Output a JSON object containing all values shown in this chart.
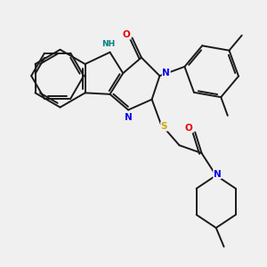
{
  "background_color": "#f0f0f0",
  "bond_color": "#1a1a1a",
  "atom_colors": {
    "N": "#0000ee",
    "O": "#ee0000",
    "S": "#ccaa00",
    "NH": "#008080",
    "C": "#1a1a1a"
  },
  "figsize": [
    3.0,
    3.0
  ],
  "dpi": 100
}
